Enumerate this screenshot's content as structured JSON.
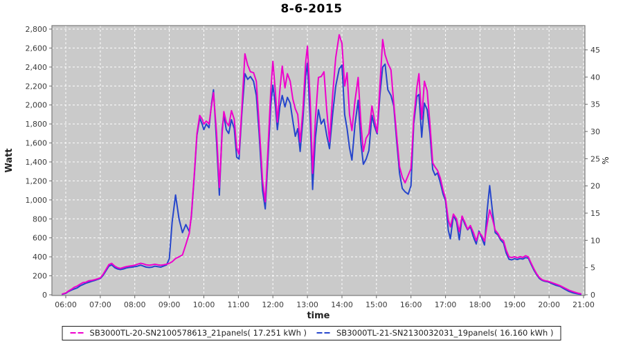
{
  "title": "8-6-2015",
  "axes": {
    "left_label": "Watt",
    "right_label": "%",
    "bottom_label": "time"
  },
  "colors": {
    "plot_background": "#cacaca",
    "grid": "#ffffff",
    "plot_border": "#7a7a7a",
    "tick_text": "#3a3a3a",
    "series1": "#ee00cc",
    "series2": "#2545cc"
  },
  "legend": {
    "entries": [
      {
        "label": "SB3000TL-20-SN2100578613_21panels( 17.251 kWh )",
        "color": "#ee00cc"
      },
      {
        "label": "SB3000TL-21-SN2130032031_19panels( 16.160 kWh )",
        "color": "#2545cc"
      }
    ]
  },
  "chart_data": {
    "type": "line",
    "title": "8-6-2015",
    "xlabel": "time",
    "ylabel_left": "Watt",
    "ylabel_right": "%",
    "legend_position": "bottom",
    "grid": {
      "color": "#ffffff",
      "style": "dashed"
    },
    "plot_bg": "#cacaca",
    "x_tick_hours": [
      6,
      7,
      8,
      9,
      10,
      11,
      12,
      13,
      14,
      15,
      16,
      17,
      18,
      19,
      20,
      21
    ],
    "x_tick_labels": [
      "06:00",
      "07:00",
      "08:00",
      "09:00",
      "10:00",
      "11:00",
      "12:00",
      "13:00",
      "14:00",
      "15:00",
      "16:00",
      "17:00",
      "18:00",
      "19:00",
      "20:00",
      "21:00"
    ],
    "x_range_hours": [
      5.6,
      21.05
    ],
    "y_left_ticks": [
      0,
      200,
      400,
      600,
      800,
      1000,
      1200,
      1400,
      1600,
      1800,
      2000,
      2200,
      2400,
      2600,
      2800
    ],
    "y_left_tick_labels": [
      "0",
      "200",
      "400",
      "600",
      "800",
      "1,000",
      "1,200",
      "1,400",
      "1,600",
      "1,800",
      "2,000",
      "2,200",
      "2,400",
      "2,600",
      "2,800"
    ],
    "y_left_range": [
      0,
      2836
    ],
    "y_right_ticks": [
      0,
      5,
      10,
      15,
      20,
      25,
      30,
      35,
      40,
      45
    ],
    "y_right_range": [
      0,
      49.4
    ],
    "x": [
      5.9,
      6.0,
      6.08,
      6.17,
      6.25,
      6.33,
      6.42,
      6.5,
      6.58,
      6.67,
      6.75,
      6.83,
      6.92,
      7.0,
      7.08,
      7.17,
      7.25,
      7.33,
      7.42,
      7.5,
      7.58,
      7.67,
      7.75,
      7.83,
      7.92,
      8.0,
      8.08,
      8.17,
      8.25,
      8.33,
      8.42,
      8.5,
      8.58,
      8.67,
      8.75,
      8.83,
      8.92,
      9.0,
      9.08,
      9.18,
      9.28,
      9.38,
      9.48,
      9.58,
      9.64,
      9.72,
      9.8,
      9.88,
      9.95,
      10.0,
      10.07,
      10.15,
      10.22,
      10.28,
      10.37,
      10.45,
      10.53,
      10.58,
      10.65,
      10.72,
      10.8,
      10.88,
      10.95,
      11.02,
      11.1,
      11.19,
      11.27,
      11.35,
      11.44,
      11.52,
      11.6,
      11.7,
      11.78,
      11.86,
      11.94,
      12.0,
      12.07,
      12.13,
      12.2,
      12.27,
      12.35,
      12.42,
      12.5,
      12.58,
      12.65,
      12.72,
      12.79,
      12.87,
      12.95,
      13.0,
      13.08,
      13.15,
      13.23,
      13.32,
      13.4,
      13.48,
      13.56,
      13.64,
      13.73,
      13.82,
      13.92,
      14.0,
      14.08,
      14.15,
      14.22,
      14.29,
      14.38,
      14.47,
      14.55,
      14.62,
      14.7,
      14.78,
      14.87,
      14.94,
      15.02,
      15.1,
      15.18,
      15.25,
      15.33,
      15.42,
      15.5,
      15.58,
      15.67,
      15.75,
      15.83,
      15.92,
      16.0,
      16.08,
      16.17,
      16.23,
      16.31,
      16.39,
      16.47,
      16.55,
      16.63,
      16.7,
      16.77,
      16.85,
      16.93,
      17.0,
      17.08,
      17.14,
      17.23,
      17.32,
      17.4,
      17.48,
      17.56,
      17.64,
      17.72,
      17.81,
      17.89,
      17.97,
      18.05,
      18.13,
      18.21,
      18.28,
      18.36,
      18.44,
      18.52,
      18.6,
      18.68,
      18.76,
      18.84,
      18.92,
      19.0,
      19.08,
      19.16,
      19.24,
      19.32,
      19.4,
      19.48,
      19.56,
      19.64,
      19.72,
      19.8,
      19.88,
      19.97,
      20.08,
      20.2,
      20.32,
      20.45,
      20.58,
      20.7,
      20.82,
      20.92
    ],
    "series": [
      {
        "name": "SB3000TL-20-SN2100578613_21panels( 17.251 kWh )",
        "color": "#ee00cc",
        "values": [
          8,
          20,
          40,
          60,
          80,
          92,
          112,
          128,
          132,
          148,
          152,
          158,
          168,
          178,
          215,
          268,
          318,
          332,
          302,
          286,
          278,
          288,
          296,
          302,
          306,
          312,
          322,
          332,
          326,
          316,
          312,
          316,
          322,
          316,
          312,
          316,
          322,
          332,
          348,
          382,
          400,
          420,
          530,
          650,
          845,
          1250,
          1700,
          1890,
          1850,
          1800,
          1830,
          1800,
          1990,
          2130,
          1700,
          1130,
          1700,
          1930,
          1820,
          1780,
          1940,
          1850,
          1550,
          1480,
          1950,
          2540,
          2420,
          2350,
          2340,
          2250,
          1800,
          1200,
          980,
          1550,
          2150,
          2460,
          2150,
          1820,
          2150,
          2410,
          2180,
          2330,
          2250,
          2060,
          1960,
          1900,
          1610,
          1950,
          2450,
          2620,
          2050,
          1280,
          1850,
          2290,
          2300,
          2350,
          1950,
          1615,
          2100,
          2500,
          2740,
          2650,
          2200,
          2340,
          1900,
          1730,
          2050,
          2290,
          1800,
          1510,
          1650,
          1700,
          1990,
          1850,
          1710,
          2200,
          2690,
          2530,
          2440,
          2370,
          2020,
          1700,
          1350,
          1240,
          1180,
          1260,
          1330,
          1850,
          2180,
          2330,
          1850,
          2250,
          2150,
          1800,
          1390,
          1345,
          1310,
          1230,
          1100,
          1015,
          790,
          715,
          850,
          800,
          665,
          830,
          765,
          690,
          730,
          655,
          570,
          660,
          625,
          565,
          750,
          895,
          800,
          680,
          645,
          590,
          570,
          470,
          400,
          392,
          402,
          390,
          402,
          394,
          412,
          398,
          335,
          275,
          222,
          182,
          158,
          148,
          142,
          128,
          112,
          96,
          72,
          48,
          32,
          18,
          10
        ]
      },
      {
        "name": "SB3000TL-21-SN2130032031_19panels( 16.160 kWh )",
        "color": "#2545cc",
        "values": [
          5,
          15,
          35,
          50,
          62,
          72,
          95,
          108,
          122,
          132,
          142,
          150,
          162,
          172,
          205,
          255,
          302,
          315,
          286,
          272,
          266,
          272,
          282,
          288,
          292,
          296,
          302,
          312,
          302,
          292,
          288,
          292,
          302,
          296,
          292,
          302,
          315,
          380,
          760,
          1052,
          800,
          655,
          740,
          665,
          830,
          1230,
          1680,
          1860,
          1800,
          1740,
          1800,
          1760,
          2010,
          2160,
          1600,
          1050,
          1750,
          1890,
          1740,
          1700,
          1845,
          1750,
          1450,
          1430,
          1900,
          2330,
          2270,
          2300,
          2250,
          2100,
          1700,
          1100,
          905,
          1450,
          2000,
          2210,
          2000,
          1740,
          1980,
          2100,
          1980,
          2080,
          2020,
          1830,
          1670,
          1750,
          1510,
          1850,
          2300,
          2440,
          1850,
          1110,
          1650,
          1950,
          1800,
          1850,
          1680,
          1540,
          1900,
          2200,
          2380,
          2420,
          1900,
          1750,
          1550,
          1420,
          1800,
          2050,
          1600,
          1375,
          1430,
          1520,
          1890,
          1780,
          1695,
          2100,
          2400,
          2430,
          2160,
          2100,
          1990,
          1640,
          1280,
          1120,
          1085,
          1060,
          1150,
          1800,
          2090,
          2110,
          1660,
          2020,
          1950,
          1700,
          1320,
          1260,
          1285,
          1180,
          1060,
          990,
          680,
          590,
          838,
          770,
          580,
          820,
          745,
          685,
          718,
          605,
          535,
          672,
          600,
          525,
          900,
          1150,
          880,
          655,
          630,
          575,
          545,
          440,
          375,
          368,
          380,
          372,
          382,
          376,
          392,
          385,
          322,
          262,
          212,
          172,
          152,
          142,
          136,
          118,
          100,
          88,
          60,
          35,
          20,
          10,
          4
        ]
      }
    ]
  }
}
